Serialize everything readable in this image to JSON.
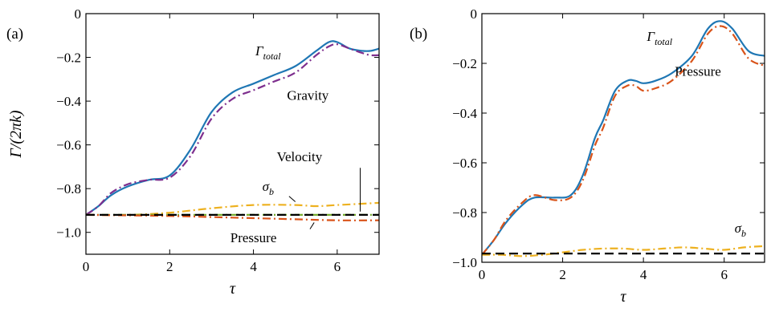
{
  "chart_data": [
    {
      "type": "line",
      "panel_label": "(a)",
      "ylabel": "Γ/(2πk)",
      "xlabel": "τ",
      "xlim": [
        0,
        7
      ],
      "ylim": [
        -1.1,
        0
      ],
      "xticks": [
        0,
        2,
        4,
        6
      ],
      "xtick_labels": [
        "0",
        "2",
        "4",
        "6"
      ],
      "yticks": [
        0,
        -0.2,
        -0.4,
        -0.6,
        -0.8,
        -1.0
      ],
      "ytick_labels": [
        "0",
        "−0.2",
        "−0.4",
        "−0.6",
        "−0.8",
        "−1.0"
      ],
      "series": [
        {
          "name": "Γtotal",
          "color": "#1f77b4",
          "dash": "solid",
          "x": [
            0,
            0.3,
            0.6,
            1,
            1.5,
            2,
            2.5,
            3,
            3.5,
            4,
            4.5,
            5,
            5.5,
            5.8,
            6,
            6.3,
            6.6,
            6.8,
            7
          ],
          "y": [
            -0.92,
            -0.88,
            -0.83,
            -0.79,
            -0.76,
            -0.74,
            -0.62,
            -0.45,
            -0.36,
            -0.32,
            -0.28,
            -0.24,
            -0.17,
            -0.13,
            -0.13,
            -0.16,
            -0.17,
            -0.17,
            -0.16
          ]
        },
        {
          "name": "Gravity",
          "color": "#7e2f8e",
          "dash": "dashdot",
          "x": [
            0,
            0.3,
            0.6,
            1,
            1.5,
            2,
            2.5,
            3,
            3.5,
            4,
            4.5,
            5,
            5.5,
            5.8,
            6,
            6.3,
            6.6,
            6.8,
            7
          ],
          "y": [
            -0.92,
            -0.88,
            -0.82,
            -0.78,
            -0.76,
            -0.75,
            -0.65,
            -0.48,
            -0.39,
            -0.35,
            -0.31,
            -0.27,
            -0.19,
            -0.15,
            -0.14,
            -0.16,
            -0.18,
            -0.19,
            -0.19
          ]
        },
        {
          "name": "σb",
          "color": "#edb120",
          "dash": "dashdot",
          "x": [
            0,
            1,
            2,
            3,
            4,
            5,
            5.5,
            6,
            7
          ],
          "y": [
            -0.92,
            -0.92,
            -0.91,
            -0.89,
            -0.875,
            -0.875,
            -0.88,
            -0.875,
            -0.865
          ]
        },
        {
          "name": "Velocity",
          "color": "#77ac30",
          "dash": "dashdot",
          "x": [
            0,
            7
          ],
          "y": [
            -0.92,
            -0.92
          ]
        },
        {
          "name": "Pressure",
          "color": "#d95319",
          "dash": "dashdot",
          "x": [
            0,
            2,
            3,
            4,
            5,
            6,
            7
          ],
          "y": [
            -0.92,
            -0.925,
            -0.93,
            -0.935,
            -0.94,
            -0.945,
            -0.945
          ]
        },
        {
          "name": "",
          "color": "#000000",
          "dash": "dashed",
          "x": [
            0,
            7
          ],
          "y": [
            -0.92,
            -0.92
          ]
        }
      ],
      "annotations": [
        {
          "text": "Γ",
          "sub": "total",
          "x": 4.35,
          "y": -0.19,
          "italic": true
        },
        {
          "text": "Gravity",
          "sub": "",
          "x": 5.3,
          "y": -0.395,
          "italic": false
        },
        {
          "text": "Velocity",
          "sub": "",
          "x": 5.1,
          "y": -0.675,
          "italic": false
        },
        {
          "text": "σ",
          "sub": "b",
          "x": 4.35,
          "y": -0.81,
          "italic": true
        },
        {
          "text": "Pressure",
          "sub": "",
          "x": 4.0,
          "y": -1.045,
          "italic": false
        }
      ],
      "leaders": [
        {
          "x": [
            6.55,
            6.55
          ],
          "y": [
            -0.705,
            -0.905
          ]
        },
        {
          "x": [
            4.85,
            5.0
          ],
          "y": [
            -0.835,
            -0.86
          ]
        },
        {
          "x": [
            5.35,
            5.45
          ],
          "y": [
            -0.985,
            -0.955
          ]
        }
      ]
    },
    {
      "type": "line",
      "panel_label": "(b)",
      "ylabel": "",
      "xlabel": "τ",
      "xlim": [
        0,
        7
      ],
      "ylim": [
        -1.0,
        0
      ],
      "xticks": [
        0,
        2,
        4,
        6
      ],
      "xtick_labels": [
        "0",
        "2",
        "4",
        "6"
      ],
      "yticks": [
        0,
        -0.2,
        -0.4,
        -0.6,
        -0.8,
        -1.0
      ],
      "ytick_labels": [
        "0",
        "−0.2",
        "−0.4",
        "−0.6",
        "−0.8",
        "−1.0"
      ],
      "series": [
        {
          "name": "Γtotal",
          "color": "#1f77b4",
          "dash": "solid",
          "x": [
            0,
            0.3,
            0.6,
            1,
            1.3,
            1.8,
            2.2,
            2.5,
            2.8,
            3,
            3.3,
            3.6,
            3.8,
            4,
            4.3,
            4.7,
            5.2,
            5.6,
            5.9,
            6.2,
            6.6,
            7
          ],
          "y": [
            -0.97,
            -0.91,
            -0.84,
            -0.77,
            -0.74,
            -0.74,
            -0.73,
            -0.65,
            -0.5,
            -0.43,
            -0.31,
            -0.27,
            -0.27,
            -0.28,
            -0.27,
            -0.24,
            -0.17,
            -0.06,
            -0.03,
            -0.06,
            -0.15,
            -0.17
          ]
        },
        {
          "name": "Pressure",
          "color": "#d95319",
          "dash": "dashdot",
          "x": [
            0,
            0.3,
            0.6,
            1,
            1.3,
            1.8,
            2.2,
            2.5,
            2.8,
            3,
            3.3,
            3.6,
            3.8,
            4,
            4.3,
            4.7,
            5.2,
            5.6,
            5.9,
            6.2,
            6.6,
            7
          ],
          "y": [
            -0.97,
            -0.91,
            -0.83,
            -0.76,
            -0.73,
            -0.75,
            -0.74,
            -0.67,
            -0.53,
            -0.46,
            -0.33,
            -0.29,
            -0.29,
            -0.31,
            -0.3,
            -0.27,
            -0.19,
            -0.08,
            -0.05,
            -0.08,
            -0.18,
            -0.21
          ]
        },
        {
          "name": "σb",
          "color": "#edb120",
          "dash": "dashdot",
          "x": [
            0,
            0.5,
            1,
            1.5,
            2,
            2.5,
            3,
            3.5,
            4,
            4.5,
            5,
            5.5,
            6,
            6.5,
            7
          ],
          "y": [
            -0.97,
            -0.97,
            -0.975,
            -0.97,
            -0.96,
            -0.95,
            -0.945,
            -0.945,
            -0.95,
            -0.945,
            -0.94,
            -0.945,
            -0.95,
            -0.94,
            -0.935
          ]
        },
        {
          "name": "",
          "color": "#000000",
          "dash": "dashed",
          "x": [
            0,
            7
          ],
          "y": [
            -0.965,
            -0.965
          ]
        }
      ],
      "annotations": [
        {
          "text": "Γ",
          "sub": "total",
          "x": 4.4,
          "y": -0.11,
          "italic": true
        },
        {
          "text": "Pressure",
          "sub": "",
          "x": 5.35,
          "y": -0.25,
          "italic": false
        },
        {
          "text": "σ",
          "sub": "b",
          "x": 6.4,
          "y": -0.88,
          "italic": true
        }
      ],
      "leaders": []
    }
  ]
}
